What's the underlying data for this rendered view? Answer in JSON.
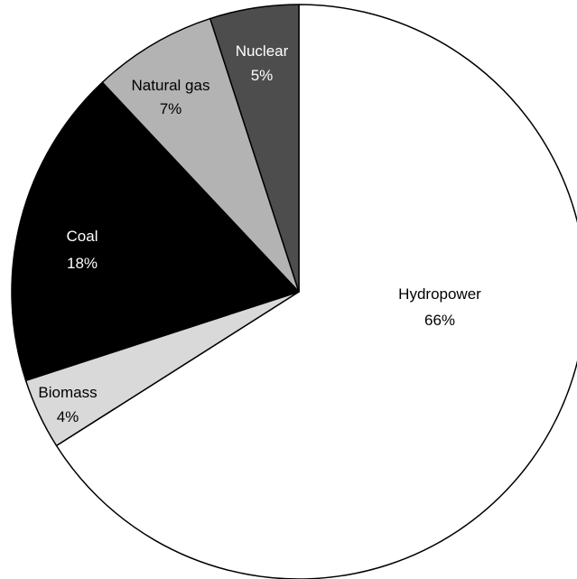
{
  "chart_data": {
    "type": "pie",
    "title": "",
    "start_angle_deg": 0,
    "direction": "clockwise",
    "slices": [
      {
        "label": "Hydropower",
        "value": 66,
        "value_label": "66%",
        "color": "#ffffff",
        "text_color": "#000000"
      },
      {
        "label": "Biomass",
        "value": 4,
        "value_label": "4%",
        "color": "#d9d9d9",
        "text_color": "#000000"
      },
      {
        "label": "Coal",
        "value": 18,
        "value_label": "18%",
        "color": "#000000",
        "text_color": "#ffffff"
      },
      {
        "label": "Natural gas",
        "value": 7,
        "value_label": "7%",
        "color": "#b3b3b3",
        "text_color": "#000000"
      },
      {
        "label": "Nuclear",
        "value": 5,
        "value_label": "5%",
        "color": "#4d4d4d",
        "text_color": "#ffffff"
      }
    ],
    "legend": "none",
    "outline_color": "#000000"
  }
}
